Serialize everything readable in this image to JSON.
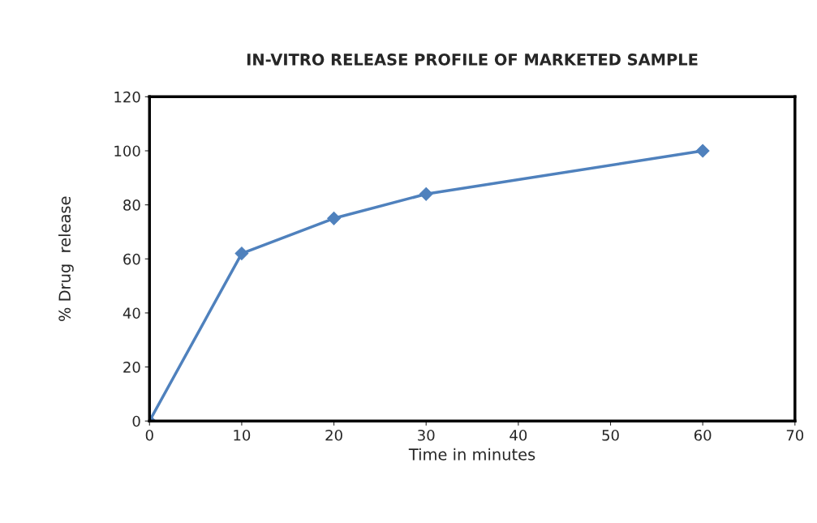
{
  "chart_data": {
    "type": "line",
    "title": "IN-VITRO RELEASE PROFILE OF MARKETED SAMPLE",
    "xlabel": "Time in minutes",
    "ylabel": "% Drug  release",
    "x": [
      0,
      10,
      20,
      30,
      60
    ],
    "series": [
      {
        "color": "#4f81bd",
        "values": [
          0,
          62,
          75,
          84,
          100
        ]
      }
    ],
    "xlim": [
      0,
      70
    ],
    "xticks": [
      0,
      10,
      20,
      30,
      40,
      50,
      60,
      70
    ],
    "ylim": [
      0,
      120
    ],
    "yticks": [
      0,
      20,
      40,
      60,
      80,
      100,
      120
    ],
    "grid": false,
    "legend": false,
    "marker": "diamond",
    "line_style": "solid"
  }
}
